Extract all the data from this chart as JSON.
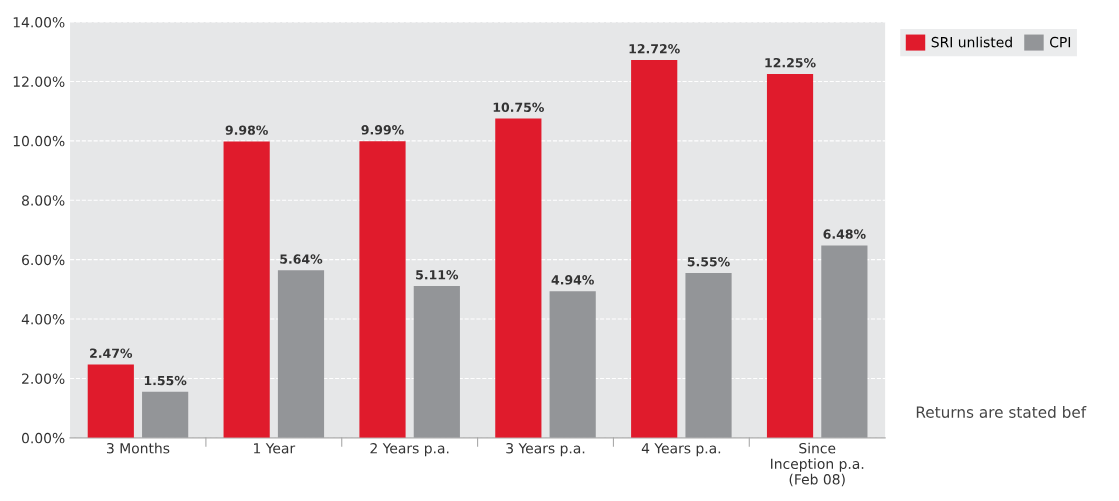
{
  "chart_data": {
    "type": "bar",
    "categories": [
      "3 Months",
      "1 Year",
      "2 Years p.a.",
      "3 Years p.a.",
      "4 Years p.a.",
      "Since\nInception p.a.\n(Feb 08)"
    ],
    "series": [
      {
        "name": "SRI unlisted",
        "color": "#e01b2c",
        "values": [
          2.47,
          9.98,
          9.99,
          10.75,
          12.72,
          12.25
        ],
        "value_labels": [
          "2.47%",
          "9.98%",
          "9.99%",
          "10.75%",
          "12.72%",
          "12.25%"
        ]
      },
      {
        "name": "CPI",
        "color": "#939598",
        "values": [
          1.55,
          5.64,
          5.11,
          4.94,
          5.55,
          6.48
        ],
        "value_labels": [
          "1.55%",
          "5.64%",
          "5.11%",
          "4.94%",
          "5.55%",
          "6.48%"
        ]
      }
    ],
    "ylim": [
      0,
      14
    ],
    "yticks": [
      {
        "value": 0,
        "label": "0.00%"
      },
      {
        "value": 2,
        "label": "2.00%"
      },
      {
        "value": 4,
        "label": "4.00%"
      },
      {
        "value": 6,
        "label": "6.00%"
      },
      {
        "value": 8,
        "label": "8.00%"
      },
      {
        "value": 10,
        "label": "10.00%"
      },
      {
        "value": 12,
        "label": "12.00%"
      },
      {
        "value": 14,
        "label": "14.00%"
      }
    ],
    "grid": "y",
    "legend": "top right",
    "annotations": [
      "Returns are stated bef"
    ]
  }
}
